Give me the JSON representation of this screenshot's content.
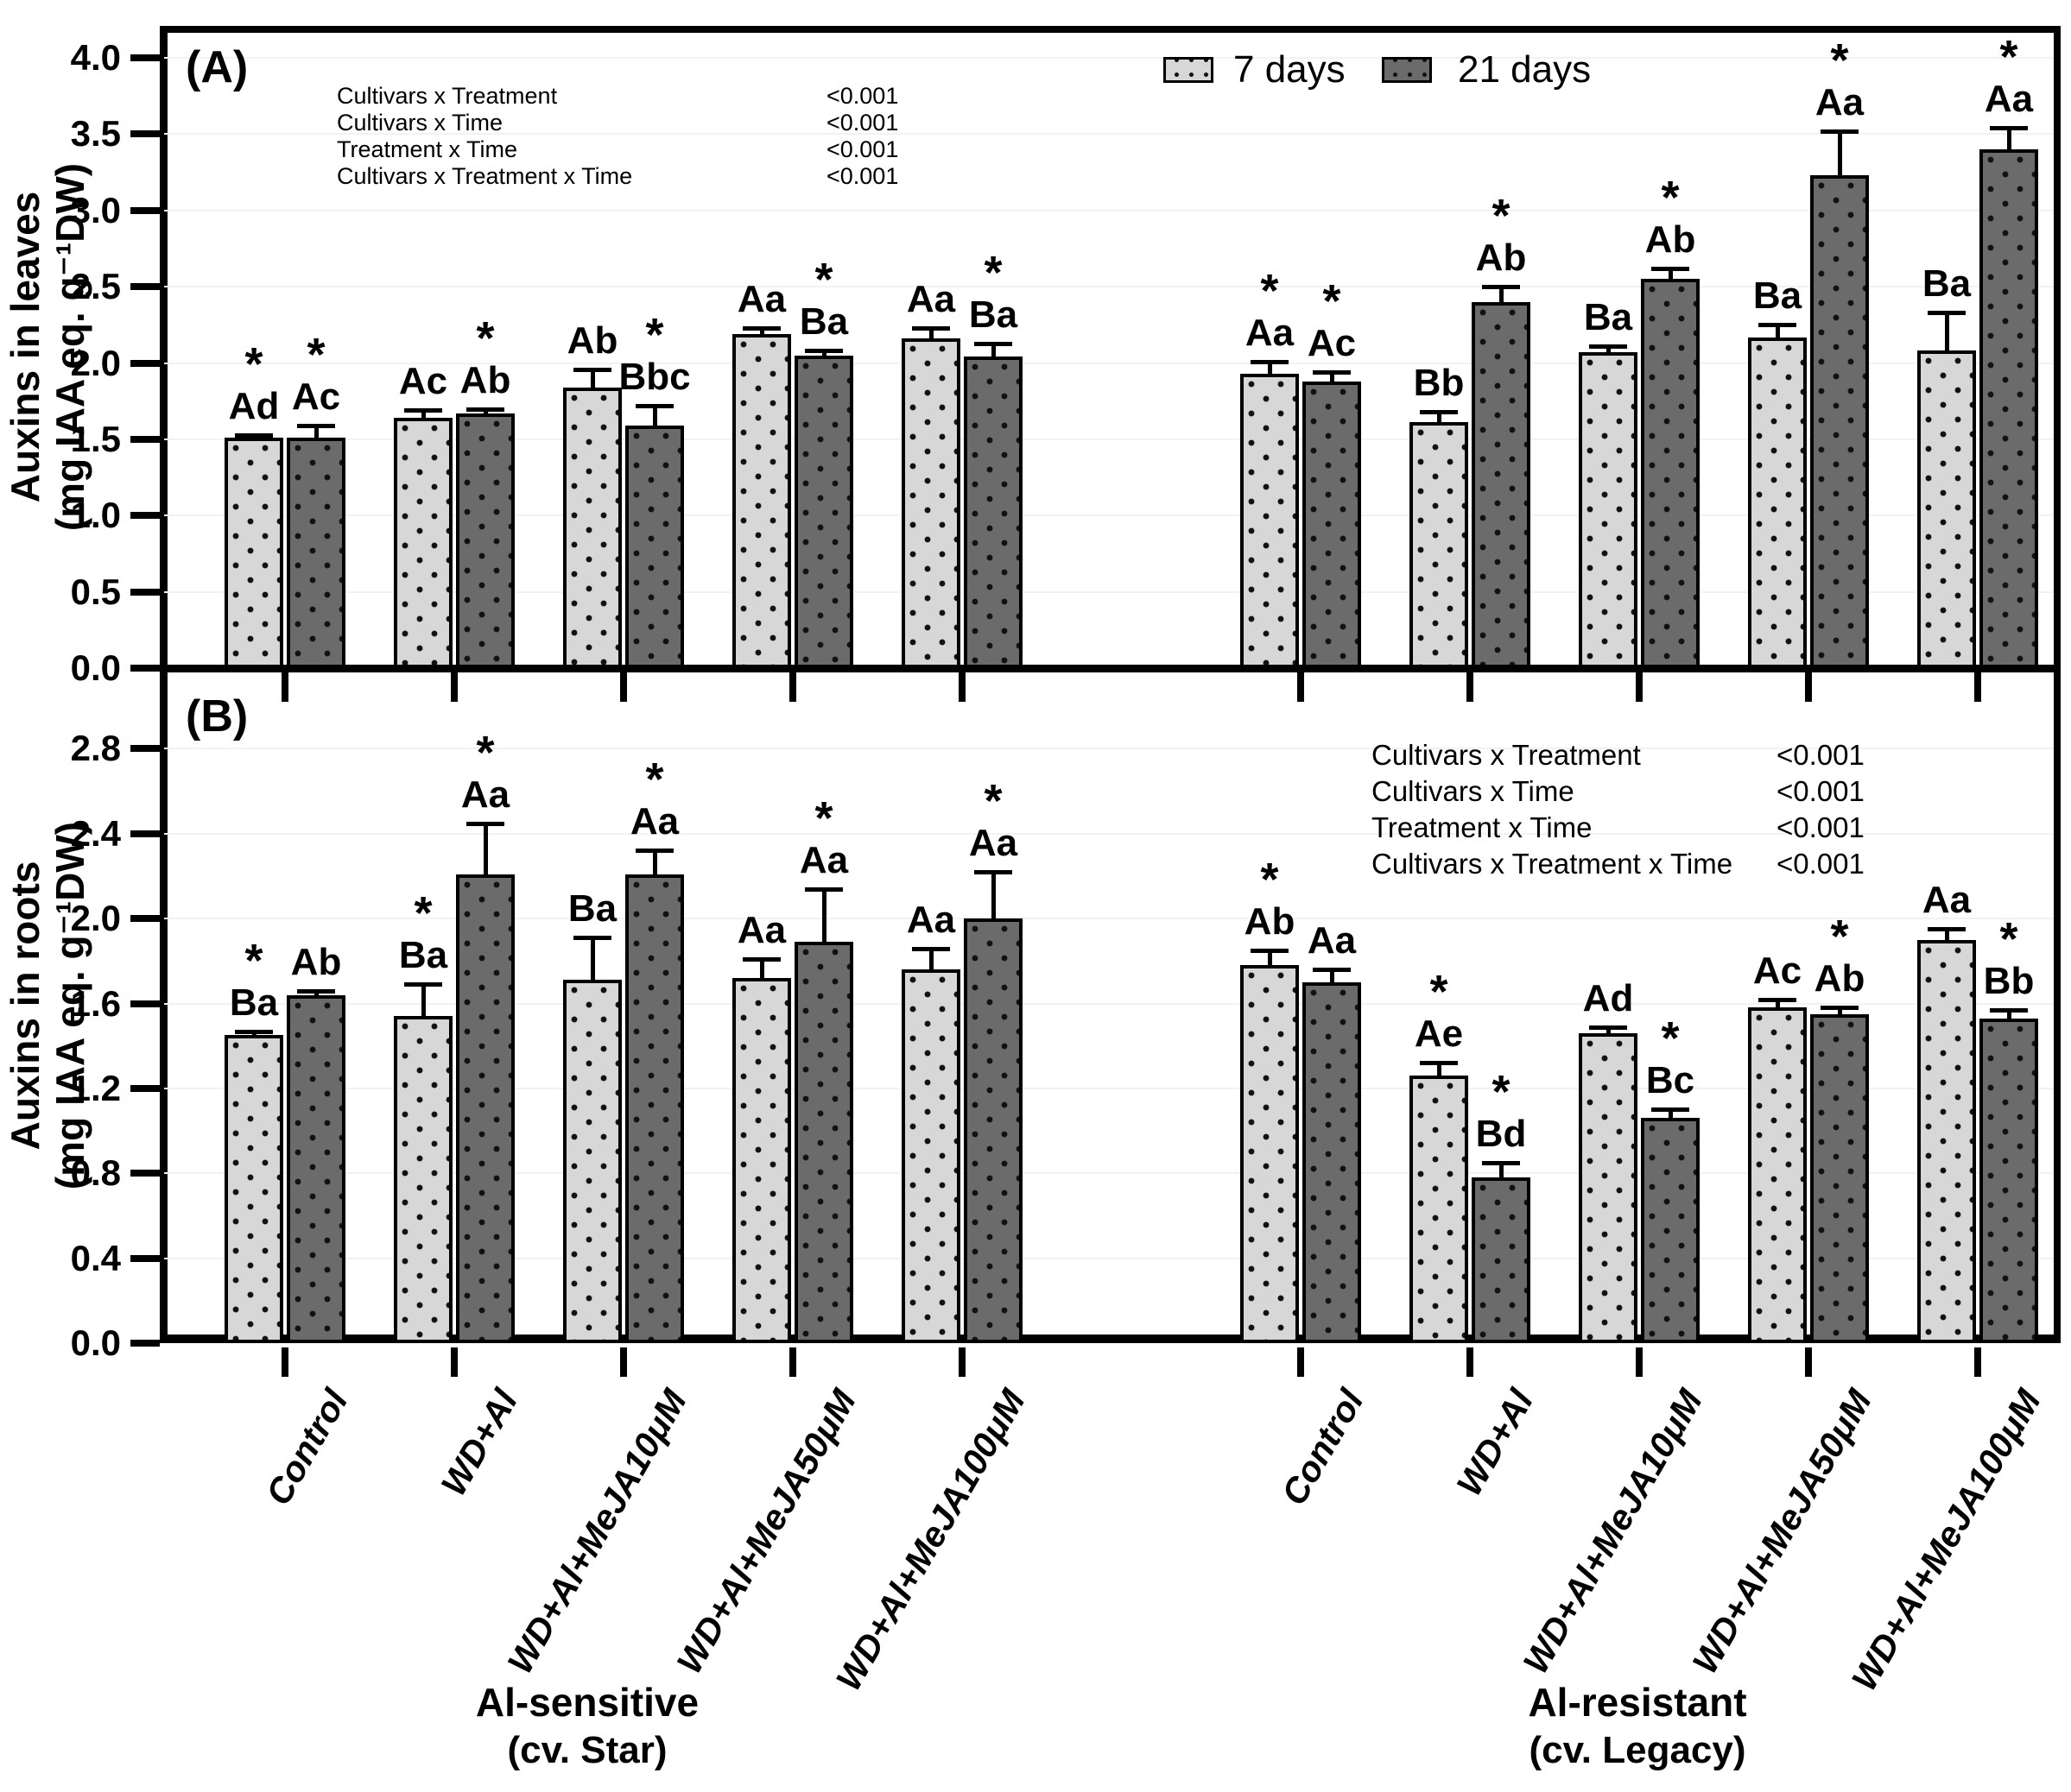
{
  "chart_data": {
    "type": "bar",
    "series": [
      {
        "name": "7 days",
        "key": "d7",
        "color": "#d7d7d7"
      },
      {
        "name": "21 days",
        "key": "d21",
        "color": "#6b6b6b"
      }
    ],
    "x_categories": [
      "Control",
      "WD+Al",
      "WD+Al+MeJA10μM",
      "WD+Al+MeJA50μM",
      "WD+Al+MeJA100μM"
    ],
    "cultivar_labels": [
      {
        "name": "Al-sensitive",
        "cv": "(cv. Star)"
      },
      {
        "name": "Al-resistant",
        "cv": "(cv. Legacy)"
      }
    ],
    "panels": [
      {
        "panel": "A",
        "tag": "(A)",
        "ylabel": "Auxins  in leaves",
        "ylabel_units": "(mg IAA eq. g⁻¹DW)",
        "ylim": [
          0,
          4.21
        ],
        "yticks": [
          "0.0",
          "0.5",
          "1.0",
          "1.5",
          "2.0",
          "2.5",
          "3.0",
          "3.5",
          "4.0"
        ],
        "ytick_values": [
          0,
          0.5,
          1.0,
          1.5,
          2.0,
          2.5,
          3.0,
          3.5,
          4.0
        ],
        "stats": [
          {
            "label": "Cultivars x Treatment",
            "p": "<0.001"
          },
          {
            "label": "Cultivars x Time",
            "p": "<0.001"
          },
          {
            "label": "Treatment x Time",
            "p": "<0.001"
          },
          {
            "label": "Cultivars x Treatment x Time",
            "p": "<0.001"
          }
        ],
        "cultivars": [
          {
            "cultivar": "Al-sensitive (cv. Star)",
            "bars": [
              {
                "treatment": "Control",
                "d7": {
                  "value": 1.51,
                  "err": 0.02,
                  "letter": "Ad",
                  "sig": true
                },
                "d21": {
                  "value": 1.51,
                  "err": 0.08,
                  "letter": "Ac",
                  "sig": true
                }
              },
              {
                "treatment": "WD+Al",
                "d7": {
                  "value": 1.64,
                  "err": 0.05,
                  "letter": "Ac",
                  "sig": false
                },
                "d21": {
                  "value": 1.67,
                  "err": 0.03,
                  "letter": "Ab",
                  "sig": true
                }
              },
              {
                "treatment": "WD+Al+MeJA10μM",
                "d7": {
                  "value": 1.84,
                  "err": 0.12,
                  "letter": "Ab",
                  "sig": false
                },
                "d21": {
                  "value": 1.59,
                  "err": 0.13,
                  "letter": "Bbc",
                  "sig": true
                }
              },
              {
                "treatment": "WD+Al+MeJA50μM",
                "d7": {
                  "value": 2.19,
                  "err": 0.04,
                  "letter": "Aa",
                  "sig": false
                },
                "d21": {
                  "value": 2.05,
                  "err": 0.03,
                  "letter": "Ba",
                  "sig": true
                }
              },
              {
                "treatment": "WD+Al+MeJA100μM",
                "d7": {
                  "value": 2.16,
                  "err": 0.07,
                  "letter": "Aa",
                  "sig": false
                },
                "d21": {
                  "value": 2.04,
                  "err": 0.09,
                  "letter": "Ba",
                  "sig": true
                }
              }
            ]
          },
          {
            "cultivar": "Al-resistant (cv. Legacy)",
            "bars": [
              {
                "treatment": "Control",
                "d7": {
                  "value": 1.93,
                  "err": 0.08,
                  "letter": "Aa",
                  "sig": true
                },
                "d21": {
                  "value": 1.88,
                  "err": 0.06,
                  "letter": "Ac",
                  "sig": true
                }
              },
              {
                "treatment": "WD+Al",
                "d7": {
                  "value": 1.61,
                  "err": 0.07,
                  "letter": "Bb",
                  "sig": false
                },
                "d21": {
                  "value": 2.4,
                  "err": 0.1,
                  "letter": "Ab",
                  "sig": true
                }
              },
              {
                "treatment": "WD+Al+MeJA10μM",
                "d7": {
                  "value": 2.07,
                  "err": 0.04,
                  "letter": "Ba",
                  "sig": false
                },
                "d21": {
                  "value": 2.55,
                  "err": 0.07,
                  "letter": "Ab",
                  "sig": true
                }
              },
              {
                "treatment": "WD+Al+MeJA50μM",
                "d7": {
                  "value": 2.17,
                  "err": 0.08,
                  "letter": "Ba",
                  "sig": false
                },
                "d21": {
                  "value": 3.23,
                  "err": 0.29,
                  "letter": "Aa",
                  "sig": true
                }
              },
              {
                "treatment": "WD+Al+MeJA100μM",
                "d7": {
                  "value": 2.08,
                  "err": 0.25,
                  "letter": "Ba",
                  "sig": false
                },
                "d21": {
                  "value": 3.4,
                  "err": 0.14,
                  "letter": "Aa",
                  "sig": true
                }
              }
            ]
          }
        ]
      },
      {
        "panel": "B",
        "tag": "(B)",
        "ylabel": "Auxins in roots",
        "ylabel_units": "(mg IAA eq. g⁻¹DW)",
        "ylim": [
          0,
          3.18
        ],
        "yticks": [
          "0.0",
          "0.4",
          "0.8",
          "1.2",
          "1.6",
          "2.0",
          "2.4",
          "2.8"
        ],
        "ytick_values": [
          0,
          0.4,
          0.8,
          1.2,
          1.6,
          2.0,
          2.4,
          2.8
        ],
        "stats": [
          {
            "label": "Cultivars x Treatment",
            "p": "<0.001"
          },
          {
            "label": "Cultivars x Time",
            "p": "<0.001"
          },
          {
            "label": "Treatment x Time",
            "p": "<0.001"
          },
          {
            "label": "Cultivars x Treatment x Time",
            "p": "<0.001"
          }
        ],
        "cultivars": [
          {
            "cultivar": "Al-sensitive (cv. Star)",
            "bars": [
              {
                "treatment": "Control",
                "d7": {
                  "value": 1.45,
                  "err": 0.02,
                  "letter": "Ba",
                  "sig": true
                },
                "d21": {
                  "value": 1.64,
                  "err": 0.02,
                  "letter": "Ab",
                  "sig": false
                }
              },
              {
                "treatment": "WD+Al",
                "d7": {
                  "value": 1.54,
                  "err": 0.15,
                  "letter": "Ba",
                  "sig": true
                },
                "d21": {
                  "value": 2.21,
                  "err": 0.24,
                  "letter": "Aa",
                  "sig": true
                }
              },
              {
                "treatment": "WD+Al+MeJA10μM",
                "d7": {
                  "value": 1.71,
                  "err": 0.2,
                  "letter": "Ba",
                  "sig": false
                },
                "d21": {
                  "value": 2.21,
                  "err": 0.11,
                  "letter": "Aa",
                  "sig": true
                }
              },
              {
                "treatment": "WD+Al+MeJA50μM",
                "d7": {
                  "value": 1.72,
                  "err": 0.09,
                  "letter": "Aa",
                  "sig": false
                },
                "d21": {
                  "value": 1.89,
                  "err": 0.25,
                  "letter": "Aa",
                  "sig": true
                }
              },
              {
                "treatment": "WD+Al+MeJA100μM",
                "d7": {
                  "value": 1.76,
                  "err": 0.1,
                  "letter": "Aa",
                  "sig": false
                },
                "d21": {
                  "value": 2.0,
                  "err": 0.22,
                  "letter": "Aa",
                  "sig": true
                }
              }
            ]
          },
          {
            "cultivar": "Al-resistant (cv. Legacy)",
            "bars": [
              {
                "treatment": "Control",
                "d7": {
                  "value": 1.78,
                  "err": 0.07,
                  "letter": "Ab",
                  "sig": true
                },
                "d21": {
                  "value": 1.7,
                  "err": 0.06,
                  "letter": "Aa",
                  "sig": false
                }
              },
              {
                "treatment": "WD+Al",
                "d7": {
                  "value": 1.26,
                  "err": 0.06,
                  "letter": "Ae",
                  "sig": true
                },
                "d21": {
                  "value": 0.78,
                  "err": 0.07,
                  "letter": "Bd",
                  "sig": true
                }
              },
              {
                "treatment": "WD+Al+MeJA10μM",
                "d7": {
                  "value": 1.46,
                  "err": 0.03,
                  "letter": "Ad",
                  "sig": false
                },
                "d21": {
                  "value": 1.06,
                  "err": 0.04,
                  "letter": "Bc",
                  "sig": true
                }
              },
              {
                "treatment": "WD+Al+MeJA50μM",
                "d7": {
                  "value": 1.58,
                  "err": 0.04,
                  "letter": "Ac",
                  "sig": false
                },
                "d21": {
                  "value": 1.55,
                  "err": 0.03,
                  "letter": "Ab",
                  "sig": true
                }
              },
              {
                "treatment": "WD+Al+MeJA100μM",
                "d7": {
                  "value": 1.9,
                  "err": 0.05,
                  "letter": "Aa",
                  "sig": false
                },
                "d21": {
                  "value": 1.53,
                  "err": 0.04,
                  "letter": "Bb",
                  "sig": true
                }
              }
            ]
          }
        ]
      }
    ],
    "legend": {
      "position": "top-right",
      "entries": [
        "7 days",
        "21 days"
      ]
    },
    "grid": "faint-horizontal",
    "significance_symbol": "*"
  }
}
